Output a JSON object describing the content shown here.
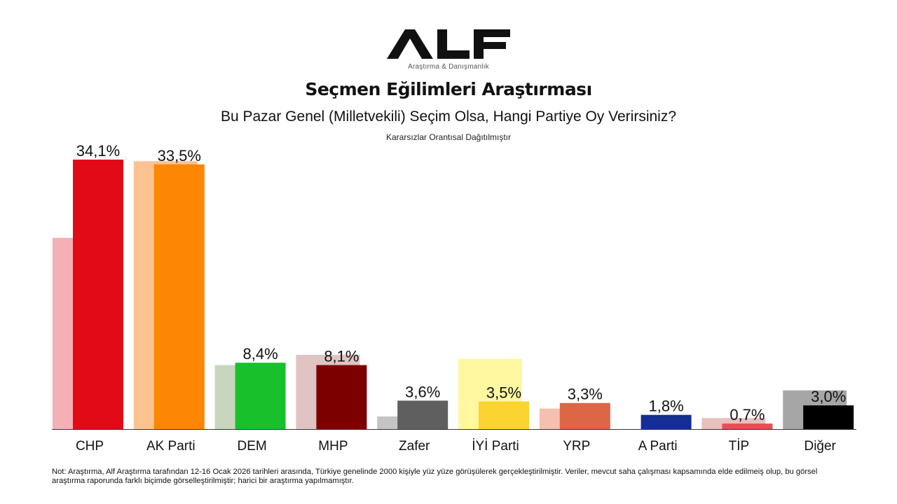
{
  "brand": {
    "logo_text": "ALF",
    "subtitle": "Araştırma & Danışmanlık"
  },
  "title": "Seçmen Eğilimleri Araştırması",
  "subtitle": "Bu Pazar Genel (Milletvekili) Seçim Olsa, Hangi Partiye Oy Verirsiniz?",
  "note": "Kararsızlar Orantısal  Dağıtılmıştır",
  "footnote": "Not: Araştırma, Alf Araştırma tarafından 12-16 Ocak 2026 tarihleri arasında, Türkiye genelinde 2000 kişiyle yüz yüze görüşülerek gerçekleştirilmiştir. Veriler, mevcut saha çalışması kapsamında elde edilmeiş olup, bu görsel araştırma raporunda farklı biçimde görselleştirilmiştir; harici bir araştırma yapılmamıştır.",
  "chart_data": {
    "type": "bar",
    "categories": [
      "CHP",
      "AK Parti",
      "DEM",
      "MHP",
      "Zafer",
      "İYİ Parti",
      "YRP",
      "A Parti",
      "TİP",
      "Diğer"
    ],
    "series": [
      {
        "values": [
          24.2,
          33.9,
          8.1,
          9.4,
          1.6,
          8.9,
          2.6,
          0,
          1.4,
          4.9
        ],
        "colors": [
          "#f4b0b6",
          "#fdc291",
          "#c7d6bd",
          "#e0c4c4",
          "#c4c4c4",
          "#fff8a0",
          "#f5c0b0",
          "#ffffff",
          "#e8c0c0",
          "#a6a6a6"
        ]
      },
      {
        "values": [
          34.1,
          33.5,
          8.4,
          8.1,
          3.6,
          3.5,
          3.3,
          1.8,
          0.7,
          3.0
        ],
        "labels": [
          "34,1%",
          "33,5%",
          "8,4%",
          "8,1%",
          "3,6%",
          "3,5%",
          "3,3%",
          "1,8%",
          "0,7%",
          "3,0%"
        ],
        "colors": [
          "#e30a17",
          "#fd8603",
          "#18c12c",
          "#7d0000",
          "#5f5f5f",
          "#fbd432",
          "#dc6646",
          "#142e92",
          "#e84d55",
          "#000000"
        ]
      }
    ],
    "ylim": [
      0,
      35
    ],
    "grid": false,
    "legend": "none"
  }
}
